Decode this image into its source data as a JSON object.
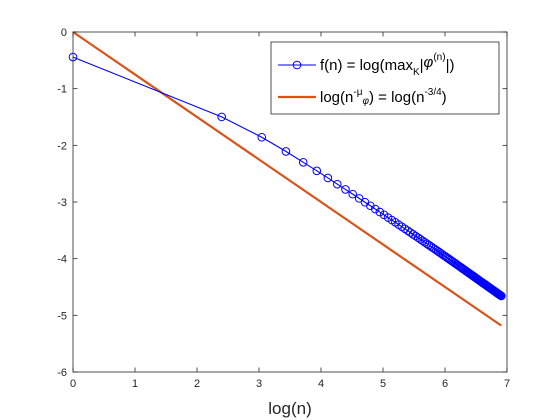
{
  "chart_data": {
    "type": "line",
    "xlabel": "log(n)",
    "ylabel": "",
    "xlim": [
      0,
      7
    ],
    "ylim": [
      -6,
      0
    ],
    "xticks": [
      0,
      1,
      2,
      3,
      4,
      5,
      6,
      7
    ],
    "yticks": [
      0,
      -1,
      -2,
      -3,
      -4,
      -5,
      -6
    ],
    "grid": false,
    "legend_position": "top-right",
    "series": [
      {
        "name": "f(n) = log(max_K|φ^(n)|)",
        "legend": {
          "main": "f(n) = log(max",
          "sub": "K",
          "mid": "|",
          "phi": "φ",
          "sup": "(n)",
          "end": "|)"
        },
        "color": "#0000ff",
        "marker": "circle",
        "x": [
          0.0,
          2.397895,
          3.044522,
          3.433987,
          3.713572,
          3.931826,
          4.110874,
          4.26268,
          4.394449,
          4.51086,
          4.615121,
          4.70953,
          4.795791,
          4.875197,
          4.94876,
          5.01728,
          5.081404,
          5.141664,
          5.198497,
          5.252273,
          5.303305,
          5.351858,
          5.398163,
          5.442418,
          5.484797,
          5.525453,
          5.56452,
          5.602119,
          5.638355,
          5.673323,
          5.70711,
          5.739793,
          5.771441,
          5.802118,
          5.831882,
          5.860786,
          5.888878,
          5.916202,
          5.942799,
          5.968708,
          5.993961,
          6.018593,
          6.042633,
          6.066108,
          6.089045,
          6.111467,
          6.133398,
          6.154858,
          6.175867,
          6.196444,
          6.216606,
          6.23637,
          6.25575,
          6.274762,
          6.293419,
          6.311735,
          6.329721,
          6.347389,
          6.364751,
          6.381816,
          6.398595,
          6.415097,
          6.431331,
          6.447306,
          6.463029,
          6.47851,
          6.493754,
          6.508769,
          6.523562,
          6.53814,
          6.552508,
          6.566672,
          6.580639,
          6.594413,
          6.608001,
          6.621406,
          6.634633,
          6.647688,
          6.660575,
          6.673298,
          6.685861,
          6.698268,
          6.710523,
          6.72263,
          6.734592,
          6.746412,
          6.758095,
          6.769642,
          6.781058,
          6.792344,
          6.803505,
          6.814543,
          6.82546,
          6.836259,
          6.846943,
          6.857514,
          6.867974,
          6.878326,
          6.888572,
          6.898715,
          6.908755
        ],
        "y": [
          -0.443,
          -1.498,
          -1.857,
          -2.107,
          -2.299,
          -2.45,
          -2.576,
          -2.685,
          -2.778,
          -2.861,
          -2.936,
          -3.004,
          -3.066,
          -3.124,
          -3.177,
          -3.227,
          -3.274,
          -3.318,
          -3.359,
          -3.399,
          -3.436,
          -3.472,
          -3.506,
          -3.538,
          -3.57,
          -3.6,
          -3.629,
          -3.657,
          -3.684,
          -3.71,
          -3.735,
          -3.76,
          -3.784,
          -3.807,
          -3.829,
          -3.851,
          -3.872,
          -3.893,
          -3.913,
          -3.933,
          -3.952,
          -3.971,
          -3.989,
          -4.007,
          -4.025,
          -4.042,
          -4.059,
          -4.075,
          -4.091,
          -4.107,
          -4.123,
          -4.138,
          -4.153,
          -4.168,
          -4.182,
          -4.196,
          -4.21,
          -4.224,
          -4.237,
          -4.251,
          -4.264,
          -4.276,
          -4.289,
          -4.301,
          -4.313,
          -4.325,
          -4.337,
          -4.349,
          -4.36,
          -4.372,
          -4.383,
          -4.394,
          -4.405,
          -4.415,
          -4.426,
          -4.436,
          -4.446,
          -4.456,
          -4.466,
          -4.476,
          -4.486,
          -4.496,
          -4.505,
          -4.514,
          -4.524,
          -4.533,
          -4.542,
          -4.551,
          -4.56,
          -4.568,
          -4.577,
          -4.586,
          -4.594,
          -4.602,
          -4.611,
          -4.619,
          -4.627,
          -4.635,
          -4.643,
          -4.65,
          -4.658
        ]
      },
      {
        "name": "log(n^-μ_φ) = log(n^-3/4)",
        "legend": {
          "a": "log(n",
          "sup_a": "-μ",
          "sub_phi": "φ",
          "b": ") = log(n",
          "sup_b": "-3/4",
          "c": ")"
        },
        "color": "#d95319",
        "marker": "none",
        "x": [
          0,
          6.908755
        ],
        "y": [
          0,
          -5.181566
        ]
      }
    ]
  }
}
